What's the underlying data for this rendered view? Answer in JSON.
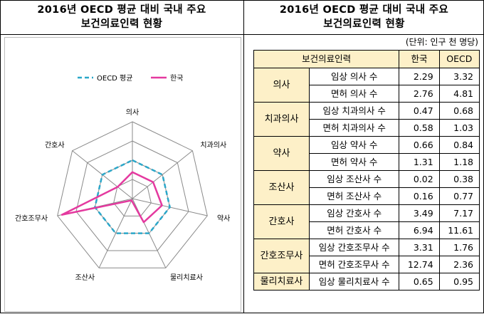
{
  "titles": {
    "left_line1": "2016년 OECD 평균 대비 국내 주요",
    "left_line2": "보건의료인력 현황",
    "right_line1": "2016년 OECD 평균 대비 국내 주요",
    "right_line2": "보건의료인력 현황"
  },
  "unit_note": "(단위: 인구 천 명당)",
  "table": {
    "headers": [
      "보건의료인력",
      "한국",
      "OECD"
    ],
    "groups": [
      {
        "occupation": "의사",
        "rows": [
          {
            "item": "임상 의사 수",
            "korea": "2.29",
            "oecd": "3.32"
          },
          {
            "item": "면허 의사 수",
            "korea": "2.76",
            "oecd": "4.81"
          }
        ]
      },
      {
        "occupation": "치과의사",
        "rows": [
          {
            "item": "임상 치과의사 수",
            "korea": "0.47",
            "oecd": "0.68"
          },
          {
            "item": "면허 치과의사 수",
            "korea": "0.58",
            "oecd": "1.03"
          }
        ]
      },
      {
        "occupation": "약사",
        "rows": [
          {
            "item": "임상 약사 수",
            "korea": "0.66",
            "oecd": "0.84"
          },
          {
            "item": "면허 약사 수",
            "korea": "1.31",
            "oecd": "1.18"
          }
        ]
      },
      {
        "occupation": "조산사",
        "rows": [
          {
            "item": "임상 조산사 수",
            "korea": "0.02",
            "oecd": "0.38"
          },
          {
            "item": "면허 조산사 수",
            "korea": "0.16",
            "oecd": "0.77"
          }
        ]
      },
      {
        "occupation": "간호사",
        "rows": [
          {
            "item": "임상 간호사 수",
            "korea": "3.49",
            "oecd": "7.17"
          },
          {
            "item": "면허 간호사 수",
            "korea": "6.94",
            "oecd": "11.61"
          }
        ]
      },
      {
        "occupation": "간호조무사",
        "rows": [
          {
            "item": "임상 간호조무사 수",
            "korea": "3.31",
            "oecd": "1.76"
          },
          {
            "item": "면허 간호조무사 수",
            "korea": "12.74",
            "oecd": "2.36"
          }
        ]
      },
      {
        "occupation": "물리치료사",
        "rows": [
          {
            "item": "임상 물리치료사 수",
            "korea": "0.65",
            "oecd": "0.95"
          }
        ]
      }
    ]
  },
  "chart_data": {
    "type": "radar",
    "categories": [
      "의사",
      "치과의사",
      "약사",
      "물리치료사",
      "조산사",
      "간호조무사",
      "간호사"
    ],
    "series": [
      {
        "name": "OECD 평균",
        "values": [
          1,
          1,
          1,
          1,
          1,
          1,
          1
        ],
        "color": "#2aa7c9",
        "style": "dashed"
      },
      {
        "name": "한국",
        "values": [
          0.69,
          0.69,
          0.79,
          0.68,
          0.05,
          1.88,
          0.49
        ],
        "color": "#e4399f",
        "style": "solid"
      }
    ],
    "rlim": [
      0,
      2
    ],
    "grid_levels": 4,
    "legend": "top"
  }
}
